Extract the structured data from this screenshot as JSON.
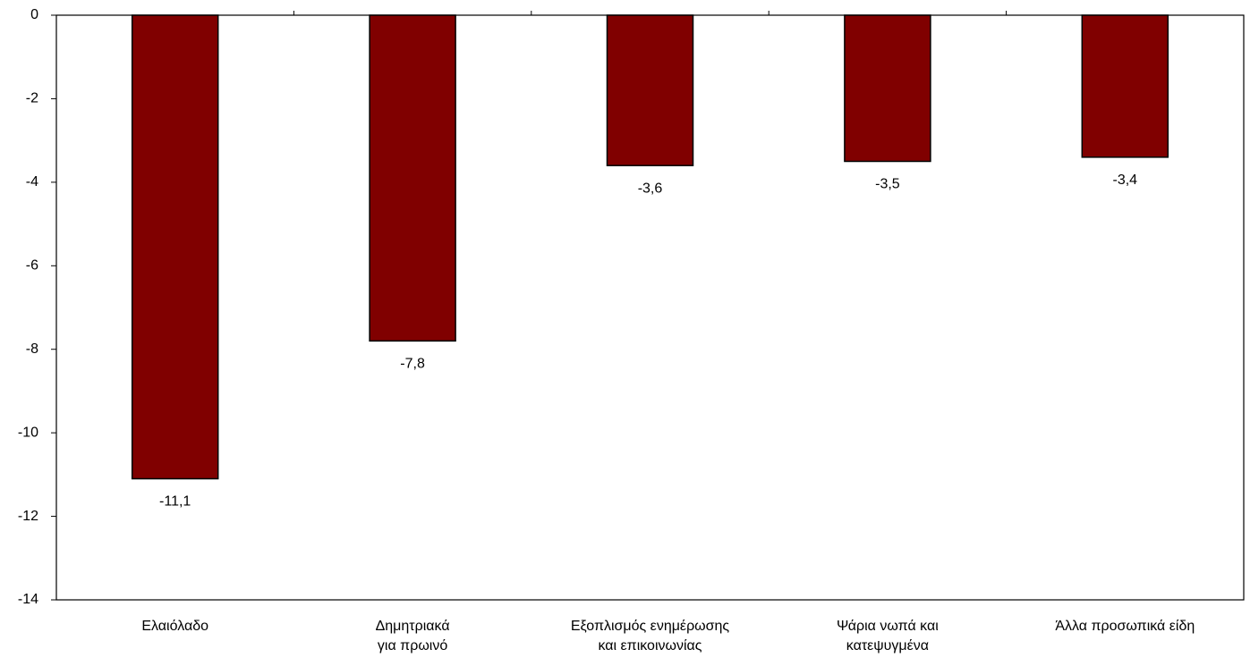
{
  "chart_data": {
    "type": "bar",
    "categories": [
      "Ελαιόλαδο",
      "Δημητριακά\nγια πρωινό",
      "Εξοπλισμός ενημέρωσης\nκαι επικοινωνίας",
      "Ψάρια νωπά και\nκατεψυγμένα",
      "Άλλα προσωπικά είδη"
    ],
    "values": [
      -11.1,
      -7.8,
      -3.6,
      -3.5,
      -3.4
    ],
    "value_labels": [
      "-11,1",
      "-7,8",
      "-3,6",
      "-3,5",
      "-3,4"
    ],
    "color": "#800000",
    "ylim": [
      -14,
      0
    ],
    "yticks": [
      0,
      -2,
      -4,
      -6,
      -8,
      -10,
      -12,
      -14
    ],
    "grid": false
  }
}
